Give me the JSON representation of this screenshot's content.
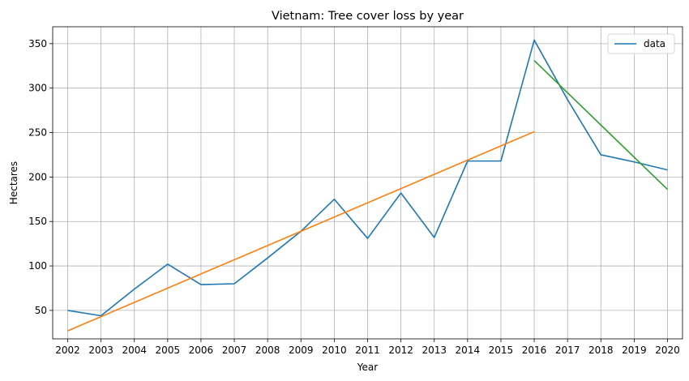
{
  "chart_data": {
    "type": "line",
    "title": "Vietnam: Tree cover loss by year",
    "xlabel": "Year",
    "ylabel": "Hectares",
    "x": [
      2002,
      2003,
      2004,
      2005,
      2006,
      2007,
      2008,
      2009,
      2010,
      2011,
      2012,
      2013,
      2014,
      2015,
      2016,
      2017,
      2018,
      2019,
      2020
    ],
    "xlim": [
      2001.55,
      2020.45
    ],
    "ylim": [
      18,
      369
    ],
    "yticks": [
      50,
      100,
      150,
      200,
      250,
      300,
      350
    ],
    "grid": true,
    "legend_position": "top-right",
    "series": [
      {
        "name": "data",
        "color": "#1f77b4",
        "x": [
          2002,
          2003,
          2004,
          2005,
          2006,
          2007,
          2008,
          2009,
          2010,
          2011,
          2012,
          2013,
          2014,
          2015,
          2016,
          2017,
          2018,
          2019,
          2020
        ],
        "values": [
          50,
          44,
          74,
          102,
          79,
          80,
          109,
          139,
          175,
          131,
          182,
          132,
          218,
          218,
          354,
          287,
          225,
          217,
          208
        ]
      },
      {
        "name": "",
        "color": "#ff7f0e",
        "x": [
          2002,
          2016
        ],
        "values": [
          27,
          251
        ]
      },
      {
        "name": "",
        "color": "#2ca02c",
        "x": [
          2016,
          2020
        ],
        "values": [
          331,
          186
        ]
      }
    ]
  }
}
